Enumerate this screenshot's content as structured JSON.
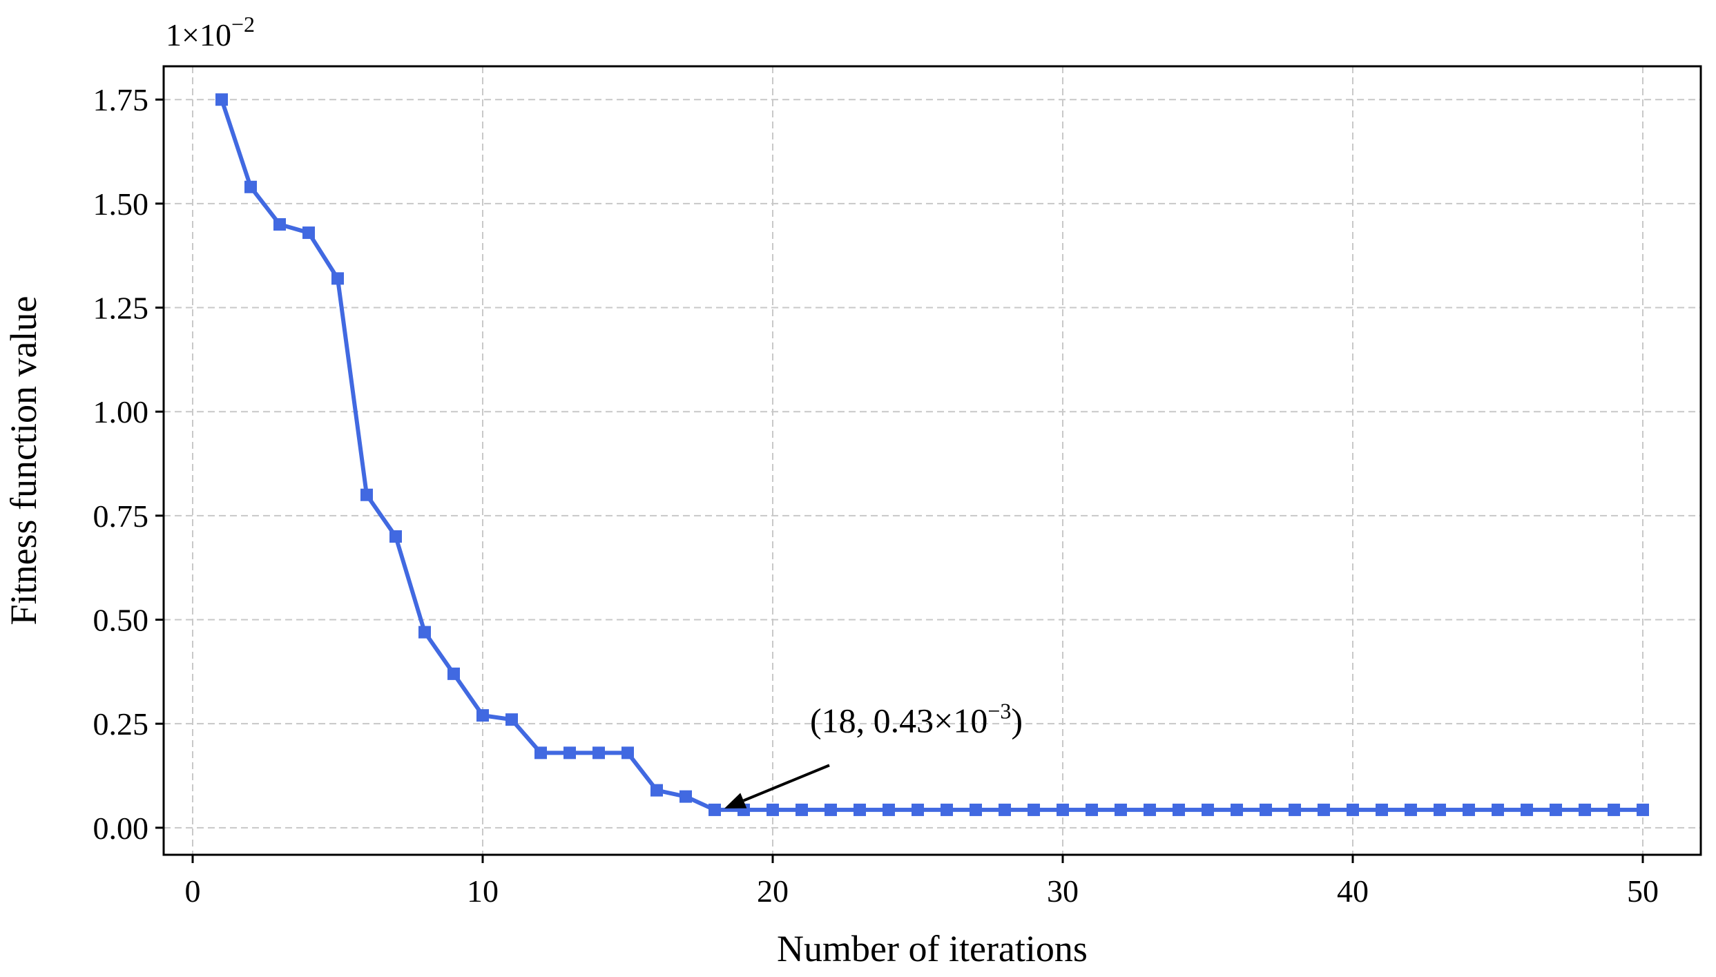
{
  "chart_data": {
    "type": "line",
    "title": "",
    "xlabel": "Number of iterations",
    "ylabel": "Fitness function value",
    "scale_label": {
      "base": "1×10",
      "exponent": "−2"
    },
    "xlim": [
      -1,
      52
    ],
    "ylim": [
      -0.065,
      1.83
    ],
    "xticks": [
      0,
      10,
      20,
      30,
      40,
      50
    ],
    "xtick_labels": [
      "0",
      "10",
      "20",
      "30",
      "40",
      "50"
    ],
    "yticks": [
      0,
      0.25,
      0.5,
      0.75,
      1.0,
      1.25,
      1.5,
      1.75
    ],
    "ytick_labels": [
      "0.00",
      "0.25",
      "0.50",
      "0.75",
      "1.00",
      "1.25",
      "1.50",
      "1.75"
    ],
    "grid": true,
    "marker": "square",
    "series": [
      {
        "color": "#4169e1",
        "x": [
          1,
          2,
          3,
          4,
          5,
          6,
          7,
          8,
          9,
          10,
          11,
          12,
          13,
          14,
          15,
          16,
          17,
          18,
          19,
          20,
          21,
          22,
          23,
          24,
          25,
          26,
          27,
          28,
          29,
          30,
          31,
          32,
          33,
          34,
          35,
          36,
          37,
          38,
          39,
          40,
          41,
          42,
          43,
          44,
          45,
          46,
          47,
          48,
          49,
          50
        ],
        "y": [
          1.75,
          1.54,
          1.45,
          1.43,
          1.32,
          0.8,
          0.7,
          0.47,
          0.37,
          0.27,
          0.26,
          0.18,
          0.18,
          0.18,
          0.18,
          0.09,
          0.075,
          0.043,
          0.043,
          0.043,
          0.043,
          0.043,
          0.043,
          0.043,
          0.043,
          0.043,
          0.043,
          0.043,
          0.043,
          0.043,
          0.043,
          0.043,
          0.043,
          0.043,
          0.043,
          0.043,
          0.043,
          0.043,
          0.043,
          0.043,
          0.043,
          0.043,
          0.043,
          0.043,
          0.043,
          0.043,
          0.043,
          0.043,
          0.043,
          0.043
        ]
      }
    ],
    "annotation": {
      "text_main": "(18, 0.43×10",
      "text_exp": "−3",
      "text_close": ")",
      "point": [
        18,
        0.043
      ],
      "text_at": [
        22,
        0.17
      ]
    }
  }
}
